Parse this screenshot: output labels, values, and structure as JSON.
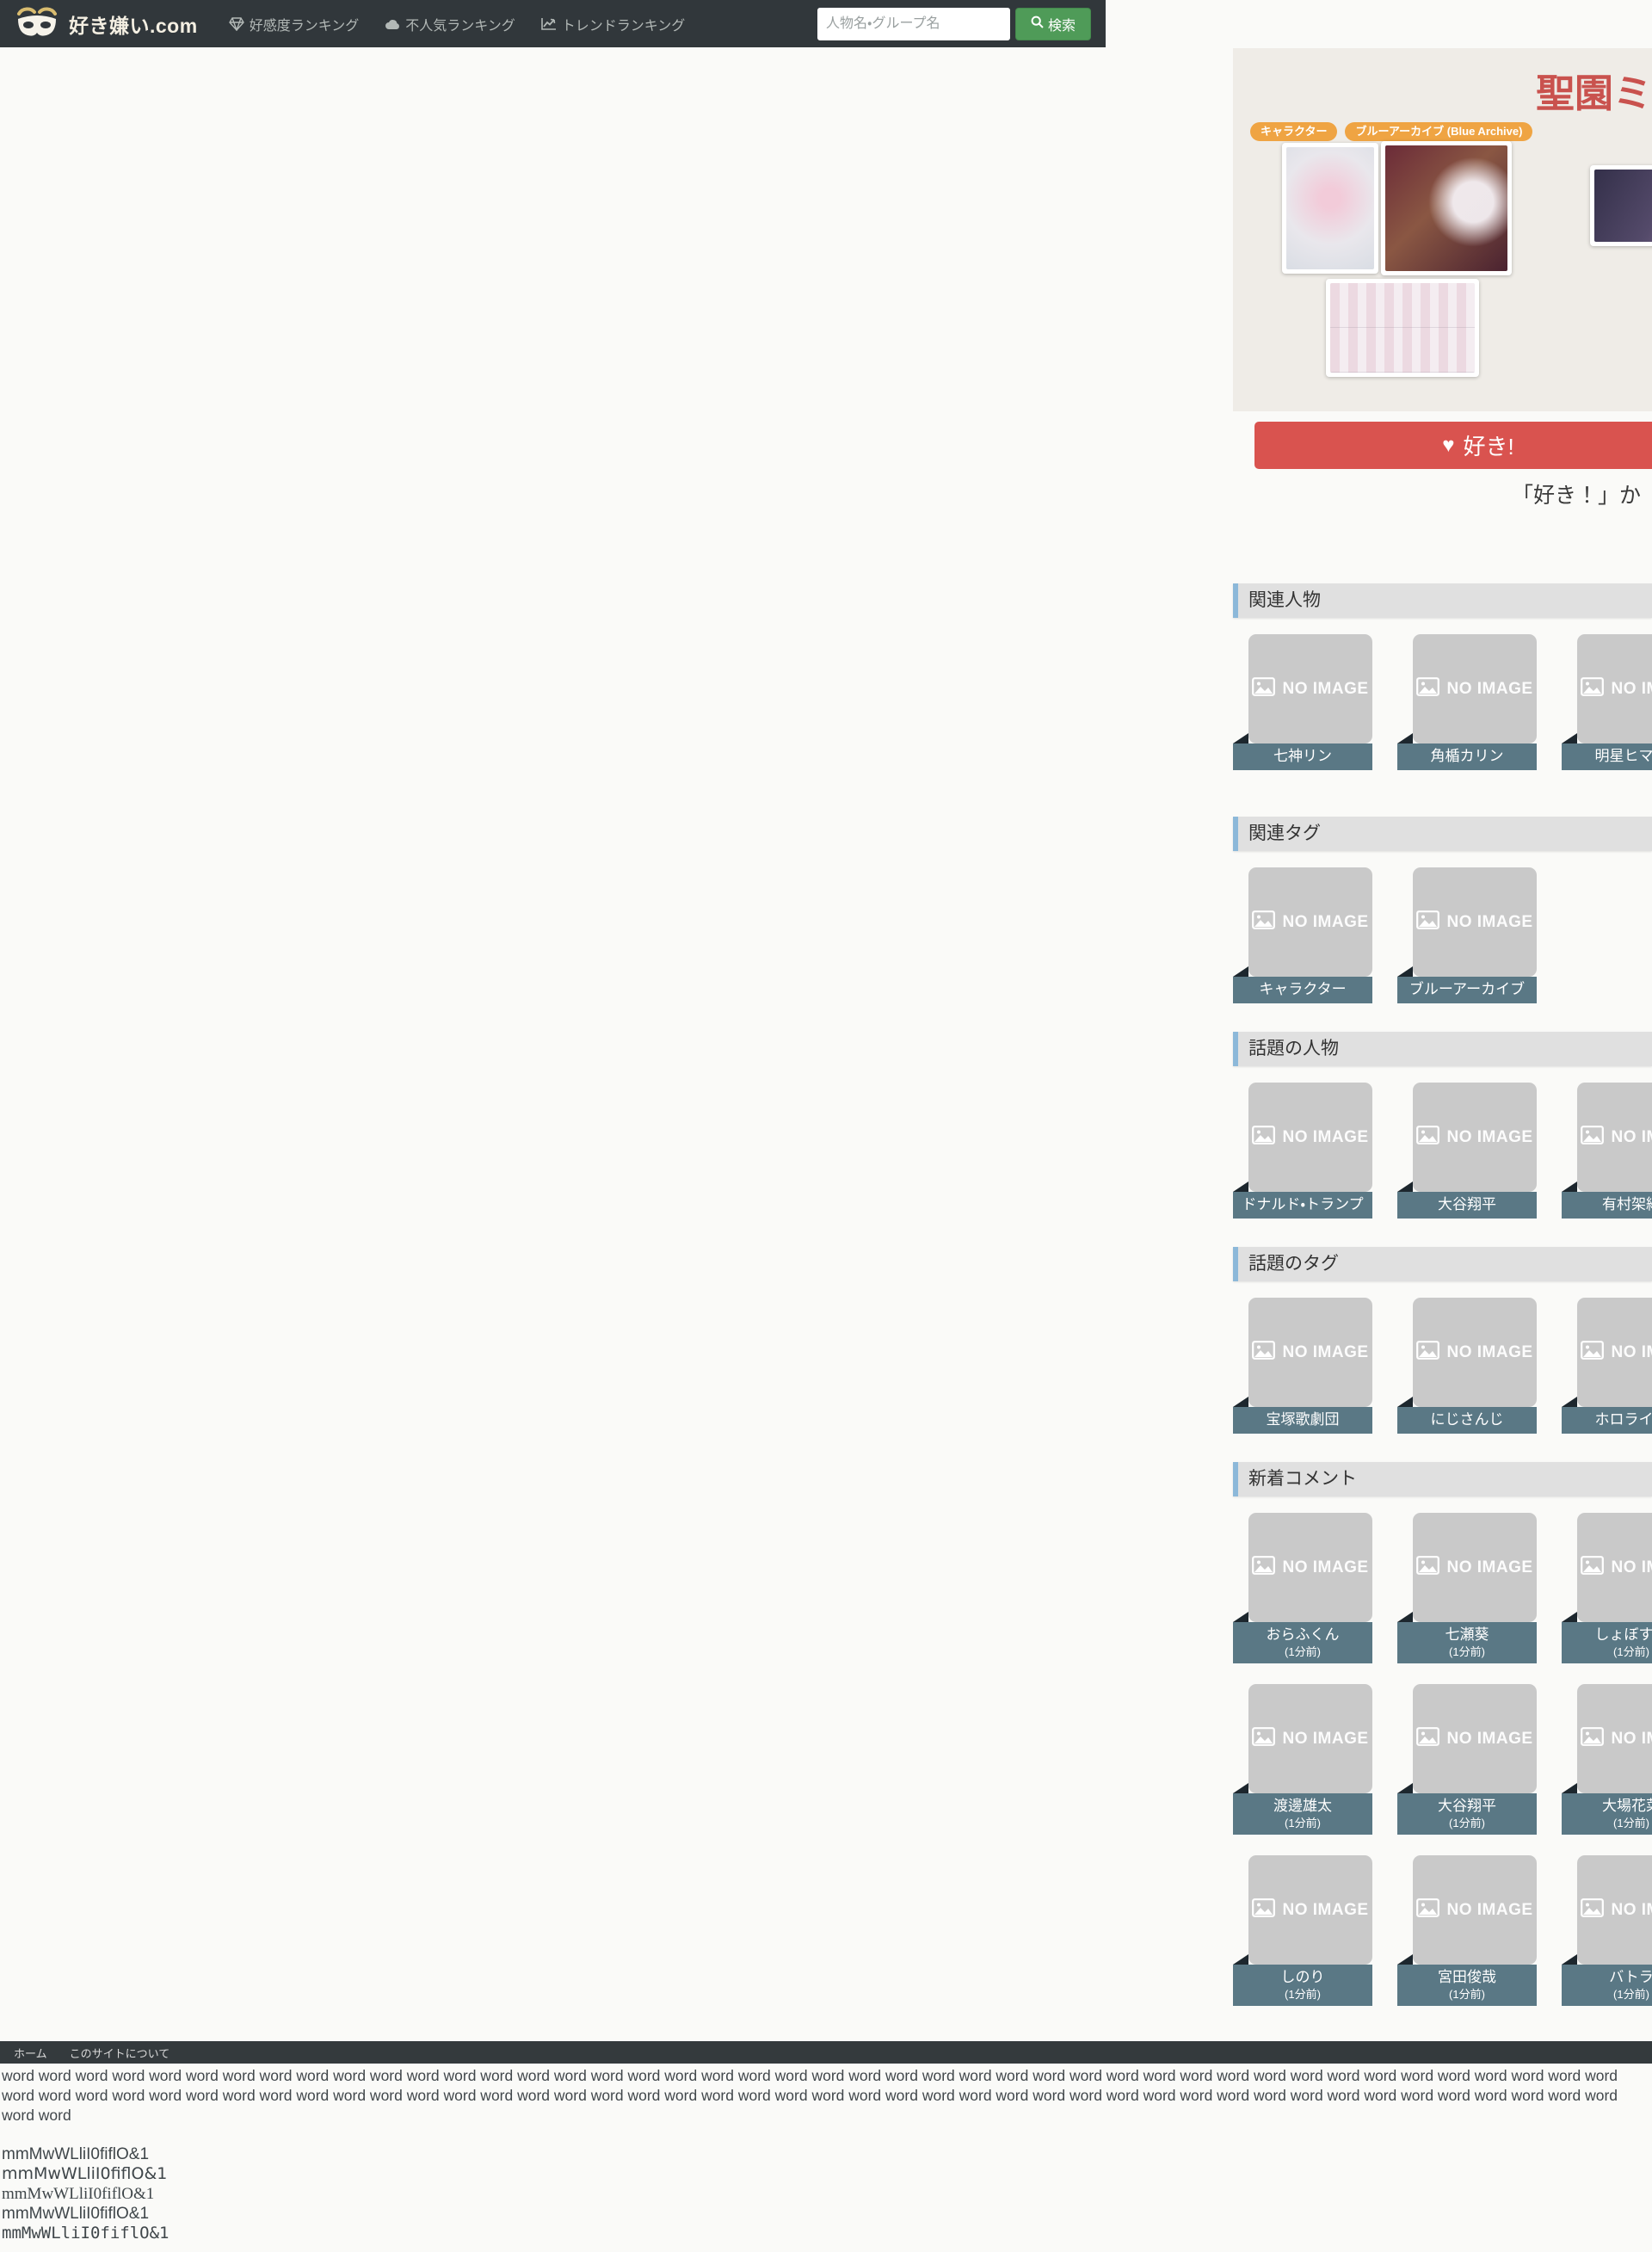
{
  "header": {
    "logo_text": "好き嫌い.com",
    "nav": [
      {
        "label": "好感度ランキング"
      },
      {
        "label": "不人気ランキング"
      },
      {
        "label": "トレンドランキング"
      }
    ],
    "search": {
      "placeholder": "人物名・グループ名",
      "button_label": "検索"
    }
  },
  "profile": {
    "title": "聖園ミカ",
    "tags": [
      "キャラクター",
      "ブルーアーカイブ (Blue Archive)"
    ],
    "like_button_label": "好き!",
    "like_heart": "♥",
    "like_prompt": "「好き！」か「嫌い！」"
  },
  "no_image_label": "NO IMAGE",
  "sections": [
    {
      "id": "related-people",
      "title": "関連人物",
      "items": [
        {
          "name": "七神リン"
        },
        {
          "name": "角楯カリン"
        },
        {
          "name": "明星ヒマリ"
        }
      ]
    },
    {
      "id": "related-tags",
      "title": "関連タグ",
      "items": [
        {
          "name": "キャラクター"
        },
        {
          "name": "ブルーアーカイブ"
        }
      ]
    },
    {
      "id": "trending-people",
      "title": "話題の人物",
      "items": [
        {
          "name": "ドナルド・トランプ"
        },
        {
          "name": "大谷翔平"
        },
        {
          "name": "有村架純"
        }
      ]
    },
    {
      "id": "trending-tags",
      "title": "話題のタグ",
      "items": [
        {
          "name": "宝塚歌劇団"
        },
        {
          "name": "にじさんじ"
        },
        {
          "name": "ホロライブ"
        }
      ]
    },
    {
      "id": "new-comments",
      "title": "新着コメント",
      "items": [
        {
          "name": "おらふくん",
          "time": "(1分前)"
        },
        {
          "name": "七瀬葵",
          "time": "(1分前)"
        },
        {
          "name": "しょぼすけ",
          "time": "(1分前)"
        },
        {
          "name": "渡邊雄太",
          "time": "(1分前)"
        },
        {
          "name": "大谷翔平",
          "time": "(1分前)"
        },
        {
          "name": "大場花菜",
          "time": "(1分前)"
        },
        {
          "name": "しのり",
          "time": "(1分前)"
        },
        {
          "name": "宮田俊哉",
          "time": "(1分前)"
        },
        {
          "name": "バトラ",
          "time": "(1分前)"
        }
      ]
    }
  ],
  "footer": {
    "links": [
      "ホーム",
      "このサイトについて"
    ],
    "filler_text": "word word word word word word word word word word word word word word word word word word word word word word word word word word word word word word word word word word word word word word word word word word word word word word word word word word word word word word word word word word word word word word word word word word word word word word word word word word word word word word word word word word word word word word word word word word",
    "font_test_lines": [
      "mmMwWLliI0fiflO&1",
      "mmMwWLliI0fiflO&1",
      "mmMwWLliI0fiflO&1",
      "mmMwWLliI0fiflO&1",
      "mmMwWLliI0fiflO&1"
    ]
  }
}
